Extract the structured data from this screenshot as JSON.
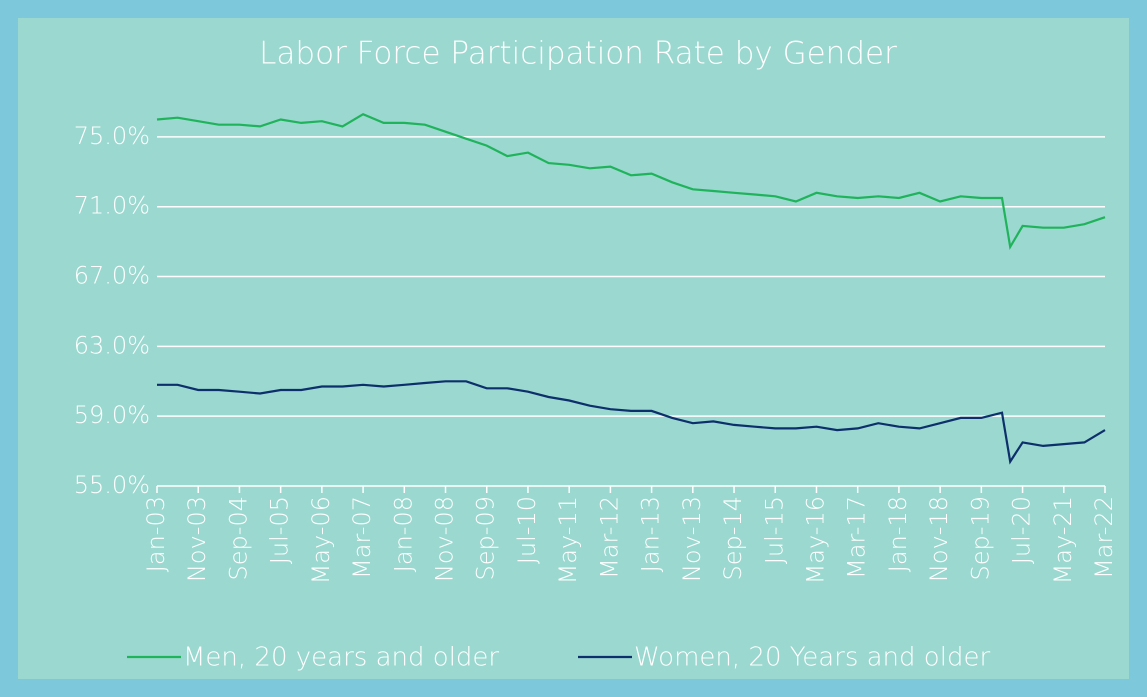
{
  "chart_data": {
    "type": "line",
    "title": "Labor Force Participation Rate by Gender",
    "x": [
      "Jan-03",
      "Jun-03",
      "Nov-03",
      "Apr-04",
      "Sep-04",
      "Feb-05",
      "Jul-05",
      "Dec-05",
      "May-06",
      "Oct-06",
      "Mar-07",
      "Aug-07",
      "Jan-08",
      "Jun-08",
      "Nov-08",
      "Apr-09",
      "Sep-09",
      "Feb-10",
      "Jul-10",
      "Dec-10",
      "May-11",
      "Oct-11",
      "Mar-12",
      "Aug-12",
      "Jan-13",
      "Jun-13",
      "Nov-13",
      "Apr-14",
      "Sep-14",
      "Feb-15",
      "Jul-15",
      "Dec-15",
      "May-16",
      "Oct-16",
      "Mar-17",
      "Aug-17",
      "Jan-18",
      "Jun-18",
      "Nov-18",
      "Apr-19",
      "Sep-19",
      "Feb-20",
      "Apr-20",
      "Jul-20",
      "Dec-20",
      "May-21",
      "Oct-21",
      "Mar-22"
    ],
    "series": [
      {
        "name": "Men, 20 years and older",
        "color": "#1fb35b",
        "values": [
          76.0,
          76.1,
          75.9,
          75.7,
          75.7,
          75.6,
          76.0,
          75.8,
          75.9,
          75.6,
          76.3,
          75.8,
          75.8,
          75.7,
          75.3,
          74.9,
          74.5,
          73.9,
          74.1,
          73.5,
          73.4,
          73.2,
          73.3,
          72.8,
          72.9,
          72.4,
          72.0,
          71.9,
          71.8,
          71.7,
          71.6,
          71.3,
          71.8,
          71.6,
          71.5,
          71.6,
          71.5,
          71.8,
          71.3,
          71.6,
          71.5,
          71.5,
          68.7,
          69.9,
          69.8,
          69.8,
          70.0,
          70.4
        ]
      },
      {
        "name": "Women, 20 Years and older",
        "color": "#0d2f6b",
        "values": [
          60.8,
          60.8,
          60.5,
          60.5,
          60.4,
          60.3,
          60.5,
          60.5,
          60.7,
          60.7,
          60.8,
          60.7,
          60.8,
          60.9,
          61.0,
          61.0,
          60.6,
          60.6,
          60.4,
          60.1,
          59.9,
          59.6,
          59.4,
          59.3,
          59.3,
          58.9,
          58.6,
          58.7,
          58.5,
          58.4,
          58.3,
          58.3,
          58.4,
          58.2,
          58.3,
          58.6,
          58.4,
          58.3,
          58.6,
          58.9,
          58.9,
          59.2,
          56.4,
          57.5,
          57.3,
          57.4,
          57.5,
          58.2
        ]
      }
    ],
    "xticks": [
      "Jan-03",
      "Nov-03",
      "Sep-04",
      "Jul-05",
      "May-06",
      "Mar-07",
      "Jan-08",
      "Nov-08",
      "Sep-09",
      "Jul-10",
      "May-11",
      "Mar-12",
      "Jan-13",
      "Nov-13",
      "Sep-14",
      "Jul-15",
      "May-16",
      "Mar-17",
      "Jan-18",
      "Nov-18",
      "Sep-19",
      "Jul-20",
      "May-21",
      "Mar-22"
    ],
    "ylim": [
      55,
      77
    ],
    "yticks": [
      {
        "value": 55,
        "label": "55.0%"
      },
      {
        "value": 59,
        "label": "59.0%"
      },
      {
        "value": 63,
        "label": "63.0%"
      },
      {
        "value": 67,
        "label": "67.0%"
      },
      {
        "value": 71,
        "label": "71.0%"
      },
      {
        "value": 75,
        "label": "75.0%"
      }
    ],
    "grid": true,
    "legend": "bottom"
  }
}
